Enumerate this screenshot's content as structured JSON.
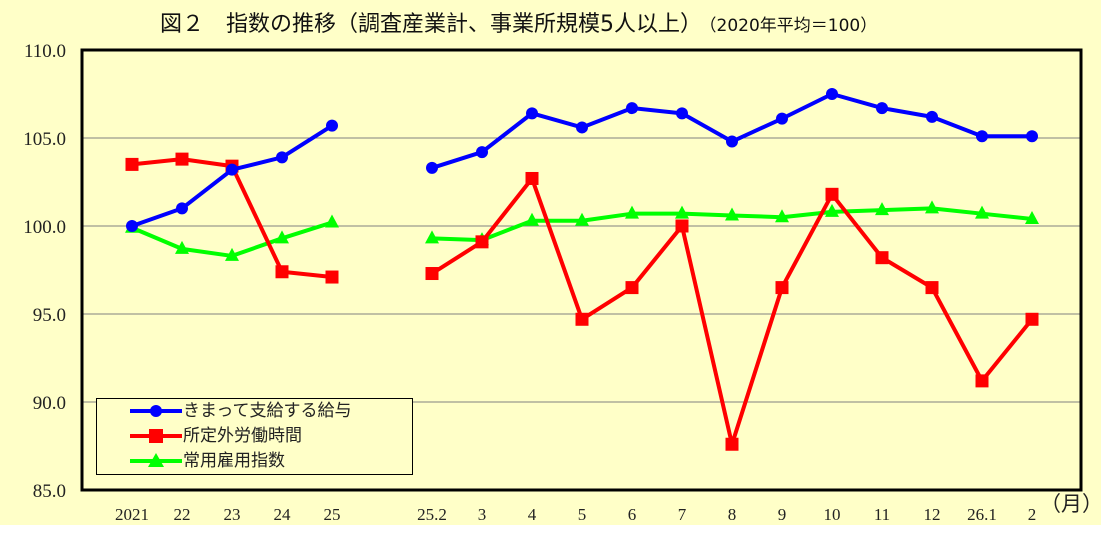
{
  "title": "図２　指数の推移（調査産業計、事業所規模5人以上）",
  "subtitle": "（2020年平均＝100）",
  "x_unit_label": "（月）",
  "colors": {
    "background": "#ffffc8",
    "blue": "#0000ff",
    "red": "#ff0000",
    "green": "#00ff00",
    "grid": "#808080"
  },
  "legend": [
    {
      "label": "きまって支給する給与",
      "color": "#0000ff",
      "marker": "circle"
    },
    {
      "label": "所定外労働時間",
      "color": "#ff0000",
      "marker": "square"
    },
    {
      "label": "常用雇用指数",
      "color": "#00ff00",
      "marker": "triangle"
    }
  ],
  "chart_data": {
    "type": "line",
    "title": "図２　指数の推移（調査産業計、事業所規模5人以上）（2020年平均＝100）",
    "xlabel": "（月）",
    "ylabel": "",
    "ylim": [
      85.0,
      110.0
    ],
    "yticks": [
      "110.0",
      "105.0",
      "100.0",
      "95.0",
      "90.0",
      "85.0"
    ],
    "grid": true,
    "legend_position": "lower-left inside",
    "groups": [
      {
        "name": "annual",
        "categories": [
          "2021",
          "22",
          "23",
          "24",
          "25"
        ],
        "series": [
          {
            "name": "きまって支給する給与",
            "values": [
              100.0,
              101.0,
              103.2,
              103.9,
              105.7
            ]
          },
          {
            "name": "所定外労働時間",
            "values": [
              103.5,
              103.8,
              103.4,
              97.4,
              97.1
            ]
          },
          {
            "name": "常用雇用指数",
            "values": [
              99.9,
              98.7,
              98.3,
              99.3,
              100.2
            ]
          }
        ]
      },
      {
        "name": "monthly",
        "categories": [
          "25.2",
          "3",
          "4",
          "5",
          "6",
          "7",
          "8",
          "9",
          "10",
          "11",
          "12",
          "26.1",
          "2"
        ],
        "series": [
          {
            "name": "きまって支給する給与",
            "values": [
              103.3,
              104.2,
              106.4,
              105.6,
              106.7,
              106.4,
              104.8,
              106.1,
              107.5,
              106.7,
              106.2,
              105.1,
              105.1
            ]
          },
          {
            "name": "所定外労働時間",
            "values": [
              97.3,
              99.1,
              102.7,
              94.7,
              96.5,
              100.0,
              87.6,
              96.5,
              101.8,
              98.2,
              96.5,
              91.2,
              94.7
            ]
          },
          {
            "name": "常用雇用指数",
            "values": [
              99.3,
              99.2,
              100.3,
              100.3,
              100.7,
              100.7,
              100.6,
              100.5,
              100.8,
              100.9,
              101.0,
              100.7,
              100.4
            ]
          }
        ]
      }
    ]
  }
}
